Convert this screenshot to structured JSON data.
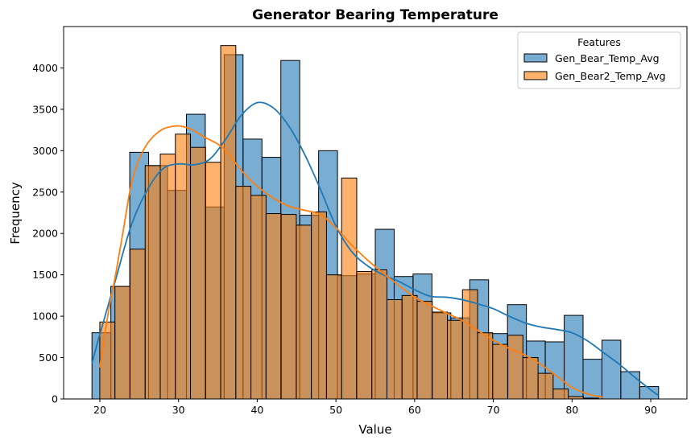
{
  "chart_data": {
    "type": "histogram",
    "title": "Generator Bearing Temperature",
    "xlabel": "Value",
    "ylabel": "Frequency",
    "xlim": [
      15.4,
      94.6
    ],
    "ylim": [
      0,
      4500
    ],
    "x_ticks": [
      20,
      30,
      40,
      50,
      60,
      70,
      80,
      90
    ],
    "y_ticks": [
      0,
      500,
      1000,
      1500,
      2000,
      2500,
      3000,
      3500,
      4000
    ],
    "grid": false,
    "legend": {
      "title": "Features",
      "placement": "top-right"
    },
    "series": [
      {
        "name": "Gen_Bear_Temp_Avg",
        "color": "#1f77b4",
        "bin_width": 2.4,
        "bin_edges": [
          19.0,
          21.4,
          23.8,
          26.2,
          28.6,
          31.0,
          33.4,
          35.8,
          38.2,
          40.6,
          43.0,
          45.4,
          47.8,
          50.2,
          52.6,
          55.0,
          57.4,
          59.8,
          62.2,
          64.6,
          67.0,
          69.4,
          71.8,
          74.2,
          76.6,
          79.0,
          81.4,
          83.8,
          86.2,
          88.6,
          91.0
        ],
        "counts": [
          800,
          1360,
          2980,
          2820,
          2520,
          3440,
          2320,
          4160,
          3140,
          2920,
          4090,
          2220,
          3000,
          1490,
          1510,
          2050,
          1480,
          1510,
          1040,
          980,
          1440,
          790,
          1140,
          700,
          690,
          1010,
          480,
          710,
          330,
          150
        ],
        "kde_x": [
          19,
          20,
          22,
          24,
          26,
          28,
          30,
          32,
          34,
          36,
          38,
          40,
          42,
          44,
          46,
          48,
          50,
          52,
          54,
          56,
          58,
          60,
          62,
          64,
          66,
          68,
          70,
          72,
          74,
          76,
          78,
          80,
          82,
          84,
          86,
          88,
          90,
          91
        ],
        "kde_y": [
          430,
          780,
          1440,
          2100,
          2520,
          2780,
          2840,
          2830,
          2900,
          3140,
          3430,
          3580,
          3520,
          3300,
          2960,
          2540,
          2090,
          1780,
          1610,
          1500,
          1420,
          1320,
          1240,
          1230,
          1200,
          1150,
          1090,
          1000,
          920,
          870,
          840,
          800,
          700,
          560,
          420,
          260,
          110,
          40
        ]
      },
      {
        "name": "Gen_Bear2_Temp_Avg",
        "color": "#ff7f0e",
        "bin_width": 1.92,
        "bin_edges": [
          20.0,
          21.92,
          23.84,
          25.76,
          27.68,
          29.6,
          31.52,
          33.44,
          35.36,
          37.28,
          39.2,
          41.12,
          43.04,
          44.96,
          46.88,
          48.8,
          50.72,
          52.64,
          54.56,
          56.48,
          58.4,
          60.32,
          62.24,
          64.16,
          66.08,
          68.0,
          69.92,
          71.84,
          73.76,
          75.68,
          77.6,
          79.52,
          81.44,
          83.36
        ],
        "counts": [
          930,
          1360,
          1810,
          2820,
          2960,
          3200,
          3040,
          2860,
          4270,
          2570,
          2460,
          2240,
          2230,
          2100,
          2260,
          1500,
          2670,
          1540,
          1560,
          1200,
          1250,
          1180,
          1050,
          950,
          1320,
          800,
          660,
          770,
          500,
          310,
          120,
          30,
          10
        ],
        "kde_x": [
          20,
          21,
          22,
          23,
          24,
          25,
          26,
          27,
          28,
          29,
          30,
          31,
          32,
          33,
          34,
          35,
          36,
          37,
          38,
          39,
          40,
          42,
          44,
          46,
          48,
          50,
          52,
          54,
          56,
          58,
          60,
          62,
          64,
          66,
          68,
          70,
          72,
          74,
          76,
          78,
          80,
          82,
          84
        ],
        "kde_y": [
          380,
          1000,
          1500,
          2050,
          2600,
          2900,
          3080,
          3190,
          3260,
          3290,
          3300,
          3280,
          3240,
          3180,
          3130,
          3080,
          3000,
          2880,
          2760,
          2660,
          2570,
          2430,
          2330,
          2280,
          2230,
          2070,
          1860,
          1680,
          1520,
          1370,
          1230,
          1130,
          1040,
          950,
          830,
          710,
          610,
          530,
          420,
          280,
          140,
          60,
          20
        ]
      }
    ]
  }
}
